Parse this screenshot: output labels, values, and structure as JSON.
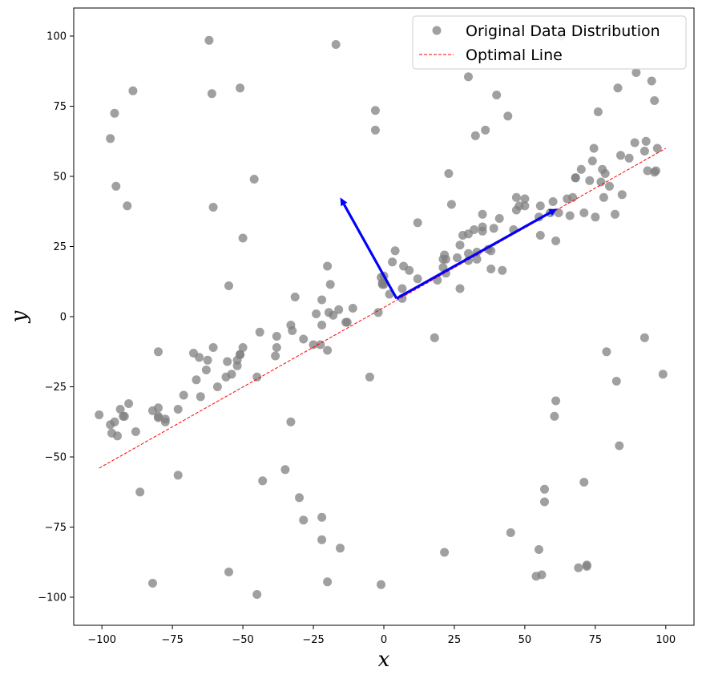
{
  "chart_data": {
    "type": "scatter",
    "title": "",
    "xlabel": "x",
    "ylabel": "y",
    "xlim": [
      -110,
      110
    ],
    "ylim": [
      -110,
      110
    ],
    "xticks": [
      -100,
      -75,
      -50,
      -25,
      0,
      25,
      50,
      75,
      100
    ],
    "yticks": [
      -100,
      -75,
      -50,
      -25,
      0,
      25,
      50,
      75,
      100
    ],
    "grid": false,
    "legend_position": "top-right",
    "colors": {
      "points": "#808080",
      "line": "#ff0000",
      "arrows": "#0000ff"
    },
    "series": [
      {
        "name": "Original Data Distribution",
        "type": "scatter",
        "points": [
          [
            -101,
            -35
          ],
          [
            -97,
            -38.5
          ],
          [
            -96.5,
            -41.5
          ],
          [
            -95.5,
            -37.5
          ],
          [
            -94.5,
            -42.5
          ],
          [
            -93.5,
            -33
          ],
          [
            -92.5,
            -35.5
          ],
          [
            -92,
            -35.5
          ],
          [
            -90.5,
            -31
          ],
          [
            -88,
            -41
          ],
          [
            -86.5,
            -62.5
          ],
          [
            -82,
            -33.5
          ],
          [
            -80,
            -32.5
          ],
          [
            -80,
            -35.5
          ],
          [
            -80,
            -36
          ],
          [
            -80,
            -12.5
          ],
          [
            -82,
            -95
          ],
          [
            -77.5,
            -36.5
          ],
          [
            -77.5,
            -37.5
          ],
          [
            -73,
            -33
          ],
          [
            -73,
            -56.5
          ],
          [
            -71,
            -28
          ],
          [
            -67.5,
            -13
          ],
          [
            -66.5,
            -22.5
          ],
          [
            -65.5,
            -14.5
          ],
          [
            -65,
            -28.5
          ],
          [
            -63,
            -19
          ],
          [
            -62.5,
            -15.5
          ],
          [
            -60.5,
            -11
          ],
          [
            -59,
            -25
          ],
          [
            -56,
            -21.5
          ],
          [
            -55.5,
            -16
          ],
          [
            -54,
            -20.5
          ],
          [
            -52,
            -17.5
          ],
          [
            -52,
            -15.5
          ],
          [
            -51,
            -13.5
          ],
          [
            -51,
            -13.5
          ],
          [
            -50,
            -11
          ],
          [
            -55,
            -91
          ],
          [
            -55,
            11
          ],
          [
            -45,
            -21.5
          ],
          [
            -44,
            -5.5
          ],
          [
            -43,
            -58.5
          ],
          [
            -45,
            -99
          ],
          [
            -38,
            -7
          ],
          [
            -38,
            -11
          ],
          [
            -38.5,
            -14
          ],
          [
            -33,
            -3
          ],
          [
            -32.5,
            -5
          ],
          [
            -31.5,
            7
          ],
          [
            -33,
            -37.5
          ],
          [
            -35,
            -54.5
          ],
          [
            -30,
            -64.5
          ],
          [
            -28.5,
            -72.5
          ],
          [
            -28.5,
            -8
          ],
          [
            -25,
            -10
          ],
          [
            -24,
            1
          ],
          [
            -22,
            -71.5
          ],
          [
            -22,
            -79.5
          ],
          [
            -22,
            6
          ],
          [
            -22,
            -3
          ],
          [
            -22.5,
            -10
          ],
          [
            -20,
            -12
          ],
          [
            -20,
            18
          ],
          [
            -19.5,
            1.5
          ],
          [
            -19,
            11.5
          ],
          [
            -18,
            0.5
          ],
          [
            -16,
            2.5
          ],
          [
            -15.5,
            -82.5
          ],
          [
            -13.5,
            -2
          ],
          [
            -13,
            -2
          ],
          [
            -11,
            3
          ],
          [
            -20,
            -94.5
          ],
          [
            -5,
            -21.5
          ],
          [
            -2,
            1.5
          ],
          [
            -1,
            14
          ],
          [
            -0.5,
            12
          ],
          [
            -0.5,
            11.5
          ],
          [
            0,
            11.5
          ],
          [
            0,
            14.5
          ],
          [
            2,
            8
          ],
          [
            3,
            19.5
          ],
          [
            4,
            23.5
          ],
          [
            -1,
            -95.5
          ],
          [
            -3,
            66.5
          ],
          [
            -3,
            73.5
          ],
          [
            6.5,
            10
          ],
          [
            6.5,
            6.5
          ],
          [
            7,
            18
          ],
          [
            9,
            16.5
          ],
          [
            12,
            13.5
          ],
          [
            12,
            33.5
          ],
          [
            18,
            -7.5
          ],
          [
            19,
            13
          ],
          [
            21,
            20.5
          ],
          [
            21,
            17.5
          ],
          [
            21.5,
            22
          ],
          [
            21.5,
            -84
          ],
          [
            22,
            15.5
          ],
          [
            22,
            20.5
          ],
          [
            23,
            51
          ],
          [
            24,
            40
          ],
          [
            26,
            21
          ],
          [
            27,
            25.5
          ],
          [
            27,
            10
          ],
          [
            28,
            29
          ],
          [
            30,
            29.5
          ],
          [
            30,
            20
          ],
          [
            30,
            22.5
          ],
          [
            32,
            31
          ],
          [
            32.5,
            64.5
          ],
          [
            33,
            20.5
          ],
          [
            33,
            23
          ],
          [
            35,
            36.5
          ],
          [
            35,
            30.5
          ],
          [
            35,
            32
          ],
          [
            36,
            66.5
          ],
          [
            37,
            24
          ],
          [
            38,
            23.5
          ],
          [
            38,
            17
          ],
          [
            39,
            31.5
          ],
          [
            41,
            35
          ],
          [
            42,
            16.5
          ],
          [
            44,
            71.5
          ],
          [
            45,
            -77
          ],
          [
            46,
            31
          ],
          [
            47,
            42.5
          ],
          [
            47,
            38
          ],
          [
            48,
            39.5
          ],
          [
            50,
            42
          ],
          [
            50,
            39.5
          ],
          [
            54,
            -92.5
          ],
          [
            55,
            -83
          ],
          [
            55,
            35.5
          ],
          [
            55.5,
            29
          ],
          [
            55.5,
            39.5
          ],
          [
            56,
            -92
          ],
          [
            57,
            -61.5
          ],
          [
            57,
            -66
          ],
          [
            59,
            37
          ],
          [
            60,
            41
          ],
          [
            60.5,
            -35.5
          ],
          [
            61,
            -30
          ],
          [
            61,
            27
          ],
          [
            62,
            37
          ],
          [
            63,
            100
          ],
          [
            65,
            42
          ],
          [
            66,
            36
          ],
          [
            67,
            42.5
          ],
          [
            68,
            49.5
          ],
          [
            68,
            49.5
          ],
          [
            69,
            -89.5
          ],
          [
            70,
            52.5
          ],
          [
            71,
            -59
          ],
          [
            71,
            37
          ],
          [
            72,
            -88.5
          ],
          [
            72,
            -89
          ],
          [
            73,
            48.5
          ],
          [
            74,
            55.5
          ],
          [
            74.5,
            60
          ],
          [
            75,
            35.5
          ],
          [
            76,
            73
          ],
          [
            77,
            48
          ],
          [
            77.5,
            52.5
          ],
          [
            78,
            42.5
          ],
          [
            78.5,
            51
          ],
          [
            79,
            -12.5
          ],
          [
            80,
            46.5
          ],
          [
            82,
            36.5
          ],
          [
            82.5,
            -23
          ],
          [
            83,
            81.5
          ],
          [
            83.5,
            -46
          ],
          [
            84,
            57.5
          ],
          [
            84.5,
            43.5
          ],
          [
            87,
            56.5
          ],
          [
            89,
            62
          ],
          [
            89.5,
            87
          ],
          [
            92.5,
            -7.5
          ],
          [
            92.5,
            59
          ],
          [
            93,
            62.5
          ],
          [
            93.5,
            52
          ],
          [
            95,
            84
          ],
          [
            96,
            77
          ],
          [
            96,
            51.5
          ],
          [
            96.5,
            52
          ],
          [
            97,
            60
          ],
          [
            99,
            -20.5
          ],
          [
            -97,
            63.5
          ],
          [
            -95.5,
            72.5
          ],
          [
            -95,
            46.5
          ],
          [
            -91,
            39.5
          ],
          [
            -89,
            80.5
          ],
          [
            -62,
            98.5
          ],
          [
            -61,
            79.5
          ],
          [
            -60.5,
            39
          ],
          [
            -51,
            81.5
          ],
          [
            -50,
            28
          ],
          [
            -46,
            49
          ],
          [
            -17,
            97
          ],
          [
            30,
            85.5
          ],
          [
            40,
            79
          ]
        ]
      },
      {
        "name": "Optimal Line",
        "type": "line",
        "style": "dashed",
        "points": [
          [
            -101,
            -54
          ],
          [
            100,
            60
          ]
        ]
      }
    ],
    "arrows": [
      {
        "from": [
          4.5,
          6.5
        ],
        "to": [
          61.5,
          38.5
        ]
      },
      {
        "from": [
          4.5,
          6.5
        ],
        "to": [
          -15.5,
          42.5
        ]
      }
    ]
  }
}
